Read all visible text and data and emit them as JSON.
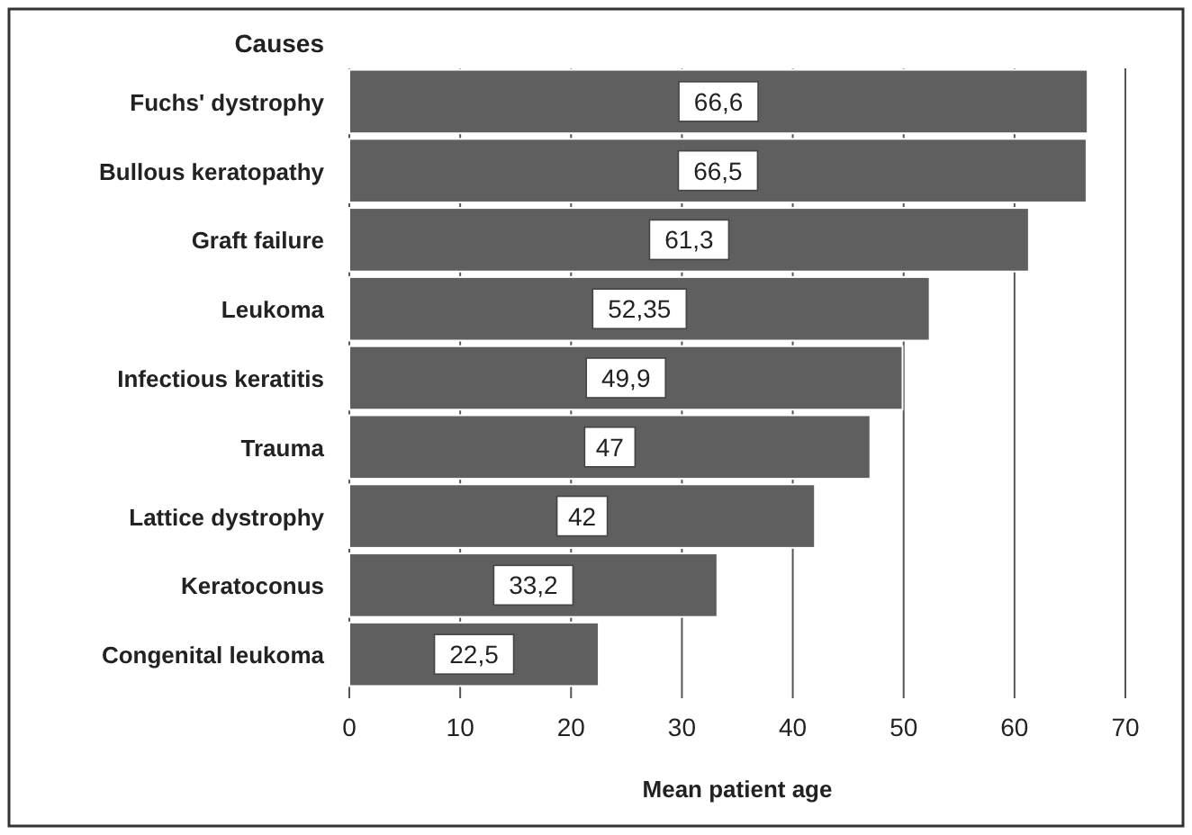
{
  "chart_data": {
    "type": "bar",
    "orientation": "horizontal",
    "ylabel": "Causes",
    "xlabel": "Mean patient age",
    "categories": [
      "Fuchs' dystrophy",
      "Bullous keratopathy",
      "Graft failure",
      "Leukoma",
      "Infectious keratitis",
      "Trauma",
      "Lattice dystrophy",
      "Keratoconus",
      "Congenital leukoma"
    ],
    "values": [
      66.6,
      66.5,
      61.3,
      52.35,
      49.9,
      47,
      42,
      33.2,
      22.5
    ],
    "value_labels": [
      "66,6",
      "66,5",
      "61,3",
      "52,35",
      "49,9",
      "47",
      "42",
      "33,2",
      "22,5"
    ],
    "color": "#5f5f5f",
    "xlim": [
      0,
      70
    ],
    "xticks": [
      0,
      10,
      20,
      30,
      40,
      50,
      60,
      70
    ],
    "grid": "x"
  }
}
